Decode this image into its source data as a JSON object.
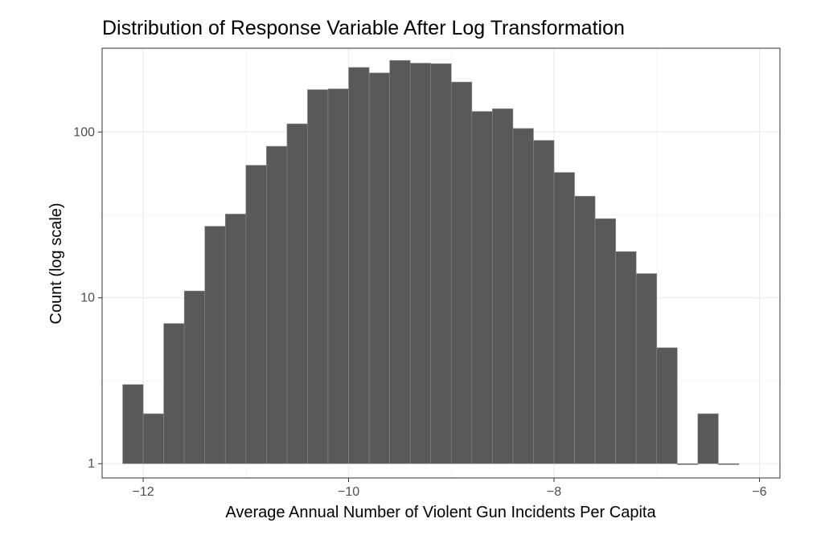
{
  "chart_data": {
    "type": "bar",
    "title": "Distribution of Response Variable After Log Transformation",
    "xlabel": "Average Annual Number of Violent Gun Incidents Per Capita",
    "ylabel": "Count (log scale)",
    "x_scale": "linear",
    "y_scale": "log10",
    "xlim": [
      -12.4,
      -5.8
    ],
    "ylim": [
      0.82,
      320
    ],
    "x_ticks": [
      -12,
      -10,
      -8,
      -6
    ],
    "x_tick_labels": [
      "−12",
      "−10",
      "−8",
      "−6"
    ],
    "y_ticks": [
      1,
      10,
      100
    ],
    "y_tick_labels": [
      "1",
      "10",
      "100"
    ],
    "grid": true,
    "bin_width": 0.2,
    "bins": [
      {
        "x0": -12.2,
        "x1": -12.0,
        "count": 3
      },
      {
        "x0": -12.0,
        "x1": -11.8,
        "count": 2
      },
      {
        "x0": -11.8,
        "x1": -11.6,
        "count": 7
      },
      {
        "x0": -11.6,
        "x1": -11.4,
        "count": 11
      },
      {
        "x0": -11.4,
        "x1": -11.2,
        "count": 27
      },
      {
        "x0": -11.2,
        "x1": -11.0,
        "count": 32
      },
      {
        "x0": -11.0,
        "x1": -10.8,
        "count": 63
      },
      {
        "x0": -10.8,
        "x1": -10.6,
        "count": 82
      },
      {
        "x0": -10.6,
        "x1": -10.4,
        "count": 112
      },
      {
        "x0": -10.4,
        "x1": -10.2,
        "count": 180
      },
      {
        "x0": -10.2,
        "x1": -10.0,
        "count": 182
      },
      {
        "x0": -10.0,
        "x1": -9.8,
        "count": 245
      },
      {
        "x0": -9.8,
        "x1": -9.6,
        "count": 227
      },
      {
        "x0": -9.6,
        "x1": -9.4,
        "count": 270
      },
      {
        "x0": -9.4,
        "x1": -9.2,
        "count": 260
      },
      {
        "x0": -9.2,
        "x1": -9.0,
        "count": 258
      },
      {
        "x0": -9.0,
        "x1": -8.8,
        "count": 200
      },
      {
        "x0": -8.8,
        "x1": -8.6,
        "count": 133
      },
      {
        "x0": -8.6,
        "x1": -8.4,
        "count": 138
      },
      {
        "x0": -8.4,
        "x1": -8.2,
        "count": 105
      },
      {
        "x0": -8.2,
        "x1": -8.0,
        "count": 89
      },
      {
        "x0": -8.0,
        "x1": -7.8,
        "count": 57
      },
      {
        "x0": -7.8,
        "x1": -7.6,
        "count": 41
      },
      {
        "x0": -7.6,
        "x1": -7.4,
        "count": 30
      },
      {
        "x0": -7.4,
        "x1": -7.2,
        "count": 19
      },
      {
        "x0": -7.2,
        "x1": -7.0,
        "count": 14
      },
      {
        "x0": -7.0,
        "x1": -6.8,
        "count": 5
      },
      {
        "x0": -6.8,
        "x1": -6.6,
        "count": 1
      },
      {
        "x0": -6.6,
        "x1": -6.4,
        "count": 2
      },
      {
        "x0": -6.4,
        "x1": -6.2,
        "count": 1
      }
    ],
    "colors": {
      "bar_fill": "#595959",
      "bar_outline": "#8a8a8a",
      "background": "#ffffff"
    }
  }
}
